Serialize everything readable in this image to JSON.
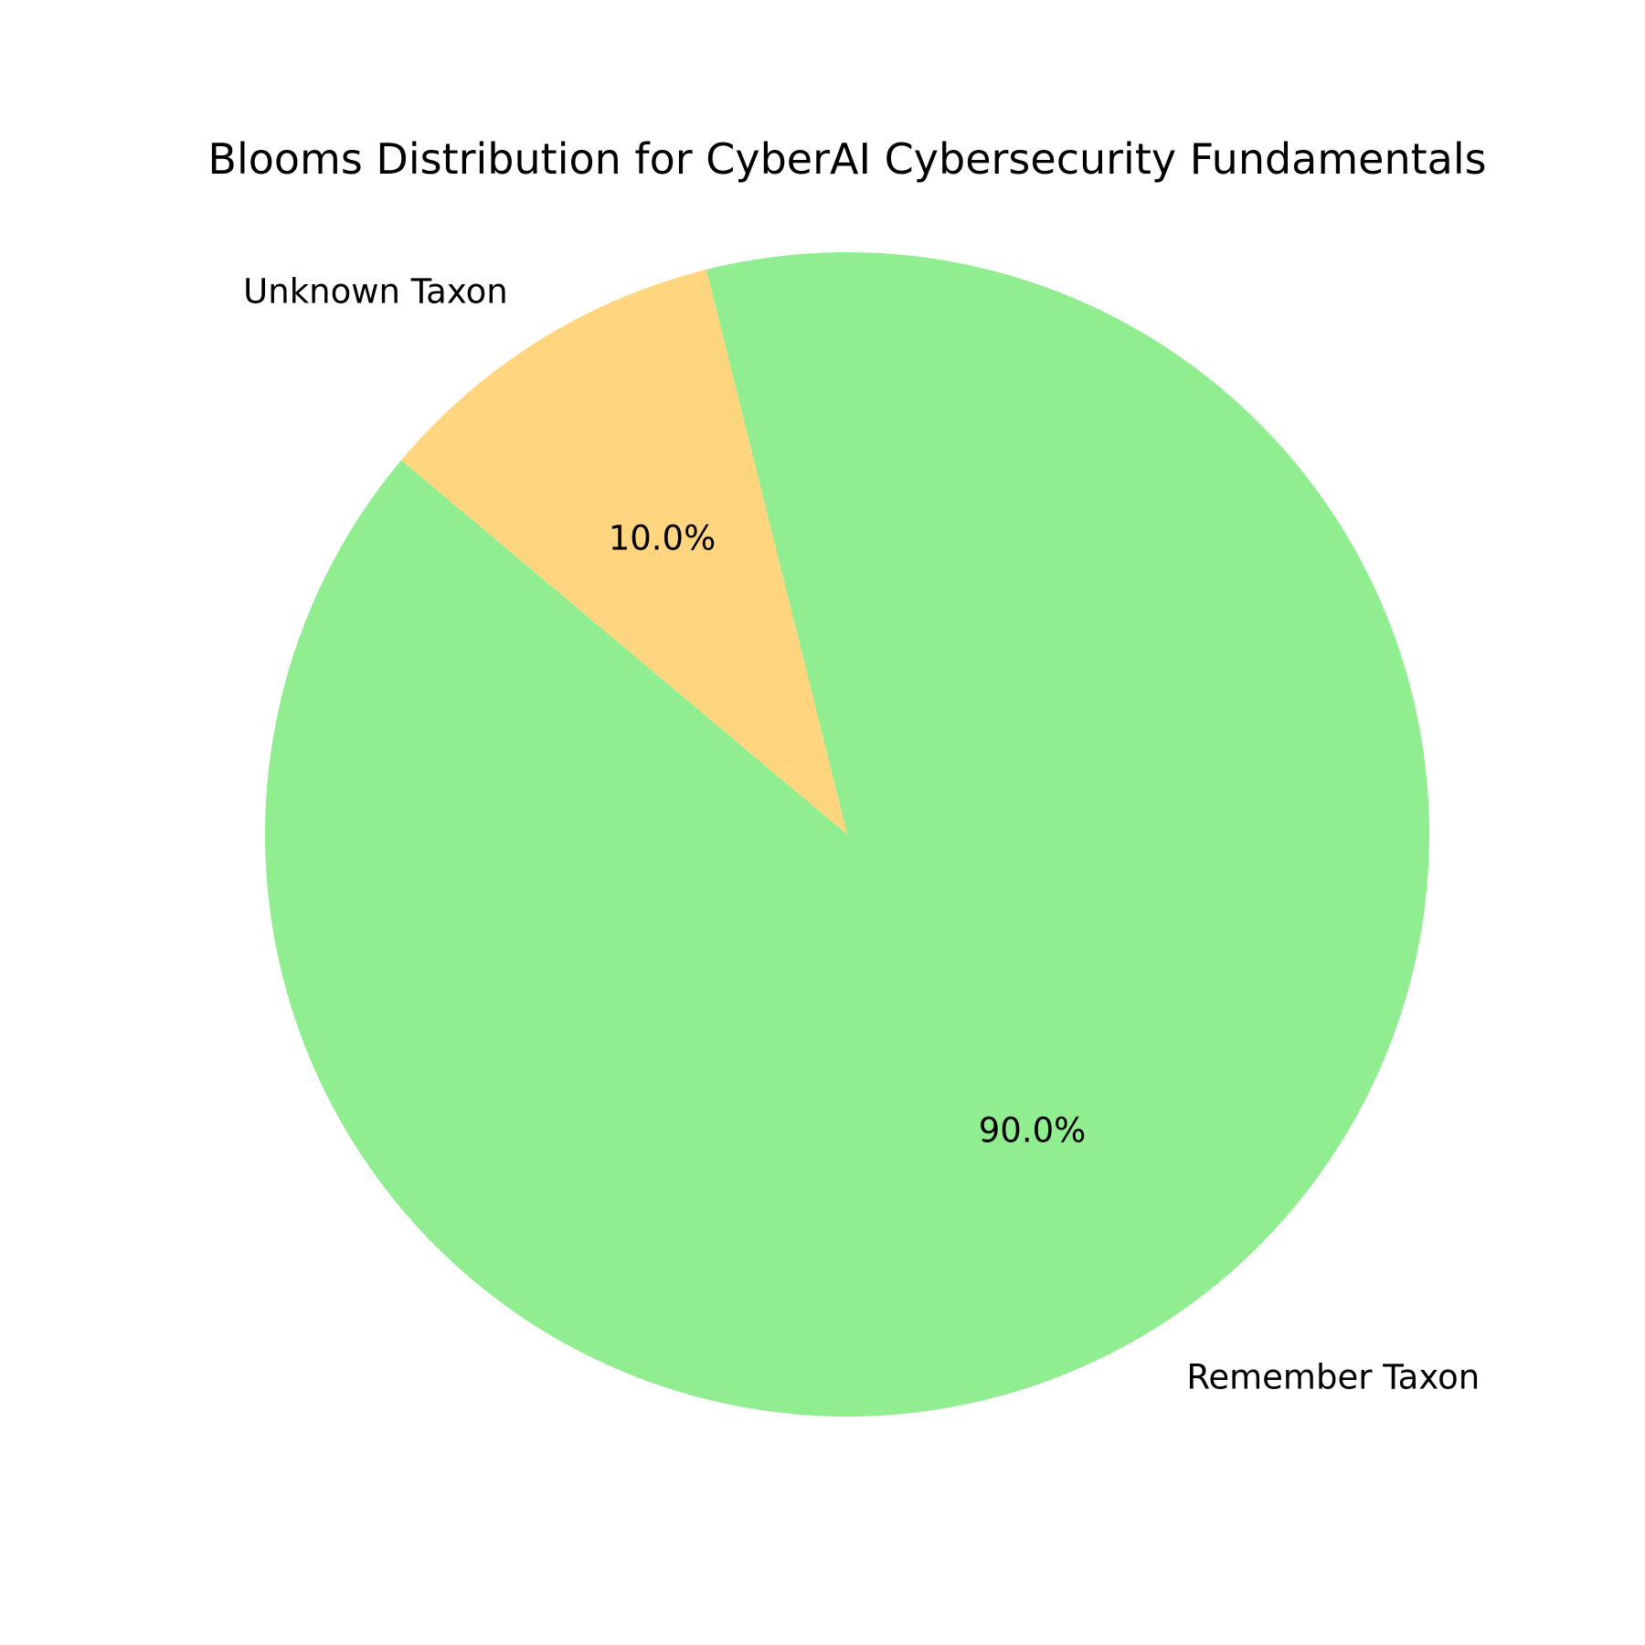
{
  "chart_data": {
    "type": "pie",
    "title": "Blooms Distribution for CyberAI Cybersecurity Fundamentals",
    "slices": [
      {
        "label": "Remember Taxon",
        "value": 90.0,
        "pct_label": "90.0%",
        "color": "#90EE90"
      },
      {
        "label": "Unknown Taxon",
        "value": 10.0,
        "pct_label": "10.0%",
        "color": "#FFD580"
      }
    ],
    "start_angle_deg": 140,
    "direction": "counterclockwise",
    "legend": "none"
  }
}
